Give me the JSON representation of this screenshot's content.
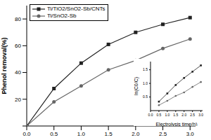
{
  "chart_data": [
    {
      "type": "line",
      "y_label": "Phenol removal(%)",
      "x": [
        0.0,
        0.5,
        1.0,
        1.5,
        2.0,
        2.5,
        3.0
      ],
      "series": [
        {
          "name": "Ti/TiO2/SnO2-Sb/CNTs",
          "color": "#222222",
          "marker": "square",
          "values": [
            0,
            28,
            47,
            61,
            70,
            76,
            81
          ]
        },
        {
          "name": "Ti/SnO2-Sb",
          "color": "#666666",
          "marker": "circle",
          "values": [
            0,
            18,
            30,
            42,
            49,
            58,
            65
          ]
        }
      ],
      "xlim": [
        0,
        3.1
      ],
      "xticks": [
        {
          "value": 0,
          "label": "0.0"
        },
        {
          "value": 0.5,
          "label": "0.5"
        },
        {
          "value": 1,
          "label": "1.0"
        },
        {
          "value": 1.5,
          "label": "1.5"
        },
        {
          "value": 2,
          "label": "2.0"
        },
        {
          "value": 2.5,
          "label": "2.5"
        },
        {
          "value": 3,
          "label": "3.0"
        }
      ],
      "ylim": [
        0,
        90
      ],
      "yticks": [
        0,
        20,
        40,
        60,
        80
      ],
      "legend": "upper left",
      "grid": false
    },
    {
      "type": "line",
      "x_label": "Electrolysis time(h)",
      "y_label": "ln(C0/C)",
      "x": [
        0.5,
        1.0,
        1.5,
        2.0,
        2.5,
        3.0
      ],
      "series": [
        {
          "name": "Ti/TiO2/SnO2-Sb/CNTs",
          "color": "#222222",
          "marker": "square",
          "values": [
            0.33,
            0.63,
            0.94,
            1.2,
            1.43,
            1.66
          ]
        },
        {
          "name": "Ti/SnO2-Sb",
          "color": "#666666",
          "marker": "circle",
          "values": [
            0.2,
            0.36,
            0.54,
            0.67,
            0.87,
            1.05
          ]
        }
      ],
      "xlim": [
        0,
        3.1
      ],
      "xticks": [
        {
          "value": 0,
          "label": "0.0"
        },
        {
          "value": 0.5,
          "label": "0.5"
        },
        {
          "value": 1,
          "label": "1.0"
        },
        {
          "value": 1.5,
          "label": "1.5"
        },
        {
          "value": 2,
          "label": "2.0"
        },
        {
          "value": 2.5,
          "label": "2.5"
        },
        {
          "value": 3,
          "label": "3.0"
        }
      ],
      "ylim": [
        0,
        1.8
      ],
      "yticks": [
        {
          "value": 0.5,
          "label": "0.5"
        },
        {
          "value": 1,
          "label": "1.0"
        },
        {
          "value": 1.5,
          "label": "1.5"
        }
      ],
      "grid": false
    }
  ]
}
